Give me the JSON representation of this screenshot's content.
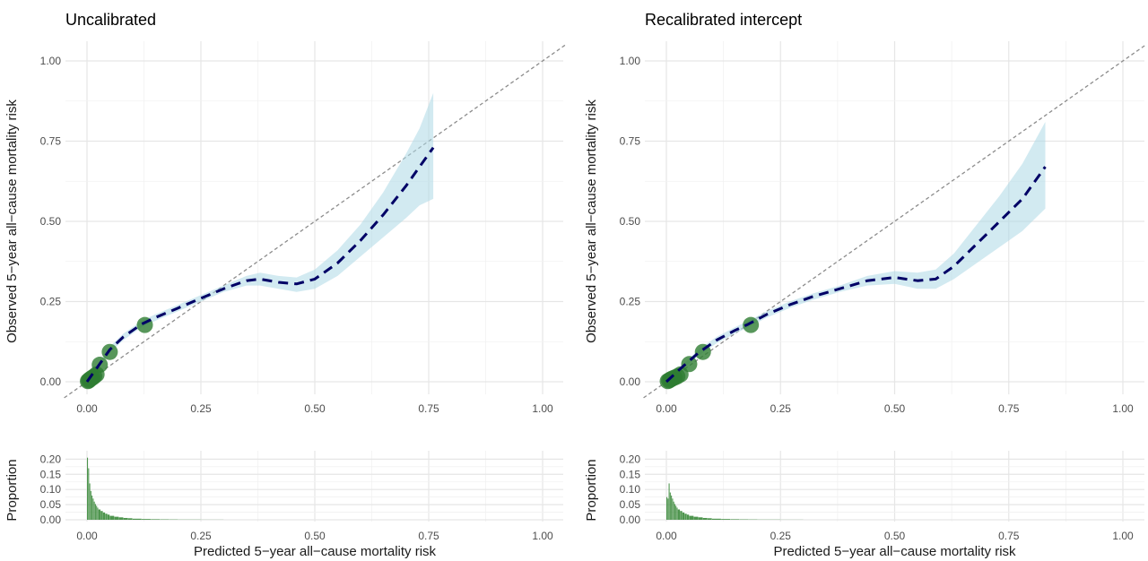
{
  "chart_data": [
    {
      "type": "line",
      "title": "Uncalibrated",
      "xlabel": "Predicted 5−year all−cause mortality risk",
      "ylabel": "Observed 5−year all−cause mortality risk",
      "xlim": [
        0,
        1.0
      ],
      "ylim": [
        0,
        1.0
      ],
      "x_ticks": [
        "0.00",
        "0.25",
        "0.50",
        "0.75",
        "1.00"
      ],
      "y_ticks": [
        "0.00",
        "0.25",
        "0.50",
        "0.75",
        "1.00"
      ],
      "grid": true,
      "colors": {
        "curve": "#000066",
        "ribbon": "#add8e6",
        "points": "#2e7d32",
        "diagonal": "#8c8c8c",
        "hist": "#3b8a3b"
      },
      "series": [
        {
          "kind": "smoothed-curve",
          "x": [
            0.0,
            0.02,
            0.05,
            0.08,
            0.12,
            0.15,
            0.2,
            0.25,
            0.3,
            0.35,
            0.38,
            0.42,
            0.46,
            0.5,
            0.55,
            0.6,
            0.65,
            0.7,
            0.73,
            0.76
          ],
          "y": [
            0.0,
            0.04,
            0.1,
            0.14,
            0.18,
            0.2,
            0.23,
            0.26,
            0.29,
            0.315,
            0.32,
            0.31,
            0.305,
            0.32,
            0.37,
            0.44,
            0.52,
            0.61,
            0.67,
            0.73
          ],
          "lower": [
            0.0,
            0.035,
            0.09,
            0.13,
            0.17,
            0.19,
            0.22,
            0.25,
            0.28,
            0.3,
            0.3,
            0.29,
            0.28,
            0.29,
            0.33,
            0.39,
            0.45,
            0.51,
            0.55,
            0.57
          ],
          "upper": [
            0.0,
            0.045,
            0.11,
            0.15,
            0.19,
            0.21,
            0.24,
            0.27,
            0.3,
            0.33,
            0.34,
            0.33,
            0.325,
            0.35,
            0.41,
            0.49,
            0.59,
            0.71,
            0.79,
            0.9
          ]
        },
        {
          "kind": "grouped-points",
          "x": [
            0.002,
            0.004,
            0.006,
            0.009,
            0.012,
            0.016,
            0.021,
            0.028,
            0.05,
            0.127
          ],
          "y": [
            0.002,
            0.004,
            0.007,
            0.01,
            0.013,
            0.017,
            0.023,
            0.053,
            0.093,
            0.177
          ]
        }
      ],
      "histogram": {
        "ylabel": "Proportion",
        "ylim": [
          0,
          0.21
        ],
        "y_ticks": [
          "0.00",
          "0.05",
          "0.10",
          "0.15",
          "0.20"
        ],
        "x": [
          0.0025,
          0.005,
          0.0075,
          0.01,
          0.0125,
          0.015,
          0.0175,
          0.02,
          0.0225,
          0.025,
          0.03,
          0.035,
          0.04,
          0.045,
          0.05,
          0.06,
          0.07,
          0.08,
          0.09,
          0.1,
          0.12,
          0.14,
          0.16,
          0.18,
          0.2,
          0.25,
          0.3
        ],
        "values": [
          0.205,
          0.17,
          0.12,
          0.095,
          0.08,
          0.07,
          0.06,
          0.052,
          0.046,
          0.04,
          0.034,
          0.029,
          0.024,
          0.02,
          0.017,
          0.013,
          0.01,
          0.008,
          0.006,
          0.005,
          0.0035,
          0.0025,
          0.0018,
          0.0013,
          0.001,
          0.0006,
          0.0003
        ]
      }
    },
    {
      "type": "line",
      "title": "Recalibrated intercept",
      "xlabel": "Predicted 5−year all−cause mortality risk",
      "ylabel": "Observed 5−year all−cause mortality risk",
      "xlim": [
        0,
        1.0
      ],
      "ylim": [
        0,
        1.0
      ],
      "x_ticks": [
        "0.00",
        "0.25",
        "0.50",
        "0.75",
        "1.00"
      ],
      "y_ticks": [
        "0.00",
        "0.25",
        "0.50",
        "0.75",
        "1.00"
      ],
      "grid": true,
      "colors": {
        "curve": "#000066",
        "ribbon": "#add8e6",
        "points": "#2e7d32",
        "diagonal": "#8c8c8c",
        "hist": "#3b8a3b"
      },
      "series": [
        {
          "kind": "smoothed-curve",
          "x": [
            0.0,
            0.03,
            0.07,
            0.11,
            0.15,
            0.18,
            0.22,
            0.27,
            0.32,
            0.38,
            0.44,
            0.5,
            0.55,
            0.59,
            0.63,
            0.68,
            0.73,
            0.78,
            0.83
          ],
          "y": [
            0.0,
            0.04,
            0.09,
            0.13,
            0.16,
            0.18,
            0.21,
            0.24,
            0.265,
            0.29,
            0.315,
            0.325,
            0.315,
            0.32,
            0.36,
            0.43,
            0.5,
            0.57,
            0.67
          ],
          "lower": [
            0.0,
            0.035,
            0.08,
            0.12,
            0.15,
            0.17,
            0.2,
            0.23,
            0.255,
            0.28,
            0.3,
            0.305,
            0.29,
            0.29,
            0.32,
            0.37,
            0.42,
            0.47,
            0.54
          ],
          "upper": [
            0.0,
            0.045,
            0.1,
            0.14,
            0.17,
            0.19,
            0.22,
            0.25,
            0.275,
            0.3,
            0.33,
            0.345,
            0.34,
            0.35,
            0.4,
            0.49,
            0.58,
            0.68,
            0.81
          ]
        },
        {
          "kind": "grouped-points",
          "x": [
            0.003,
            0.006,
            0.009,
            0.013,
            0.018,
            0.024,
            0.031,
            0.05,
            0.08,
            0.185
          ],
          "y": [
            0.002,
            0.004,
            0.007,
            0.01,
            0.013,
            0.017,
            0.023,
            0.055,
            0.093,
            0.177
          ]
        }
      ],
      "histogram": {
        "ylabel": "Proportion",
        "ylim": [
          0,
          0.21
        ],
        "y_ticks": [
          "0.00",
          "0.05",
          "0.10",
          "0.15",
          "0.20"
        ],
        "x": [
          0.0025,
          0.005,
          0.0075,
          0.01,
          0.0125,
          0.015,
          0.0175,
          0.02,
          0.0225,
          0.025,
          0.03,
          0.035,
          0.04,
          0.045,
          0.05,
          0.06,
          0.07,
          0.08,
          0.09,
          0.1,
          0.12,
          0.14,
          0.16,
          0.18,
          0.2,
          0.25,
          0.3
        ],
        "values": [
          0.075,
          0.07,
          0.12,
          0.09,
          0.08,
          0.07,
          0.06,
          0.052,
          0.046,
          0.04,
          0.034,
          0.029,
          0.024,
          0.02,
          0.017,
          0.013,
          0.01,
          0.008,
          0.006,
          0.005,
          0.0035,
          0.0025,
          0.0018,
          0.0013,
          0.001,
          0.0006,
          0.0003
        ]
      }
    }
  ]
}
